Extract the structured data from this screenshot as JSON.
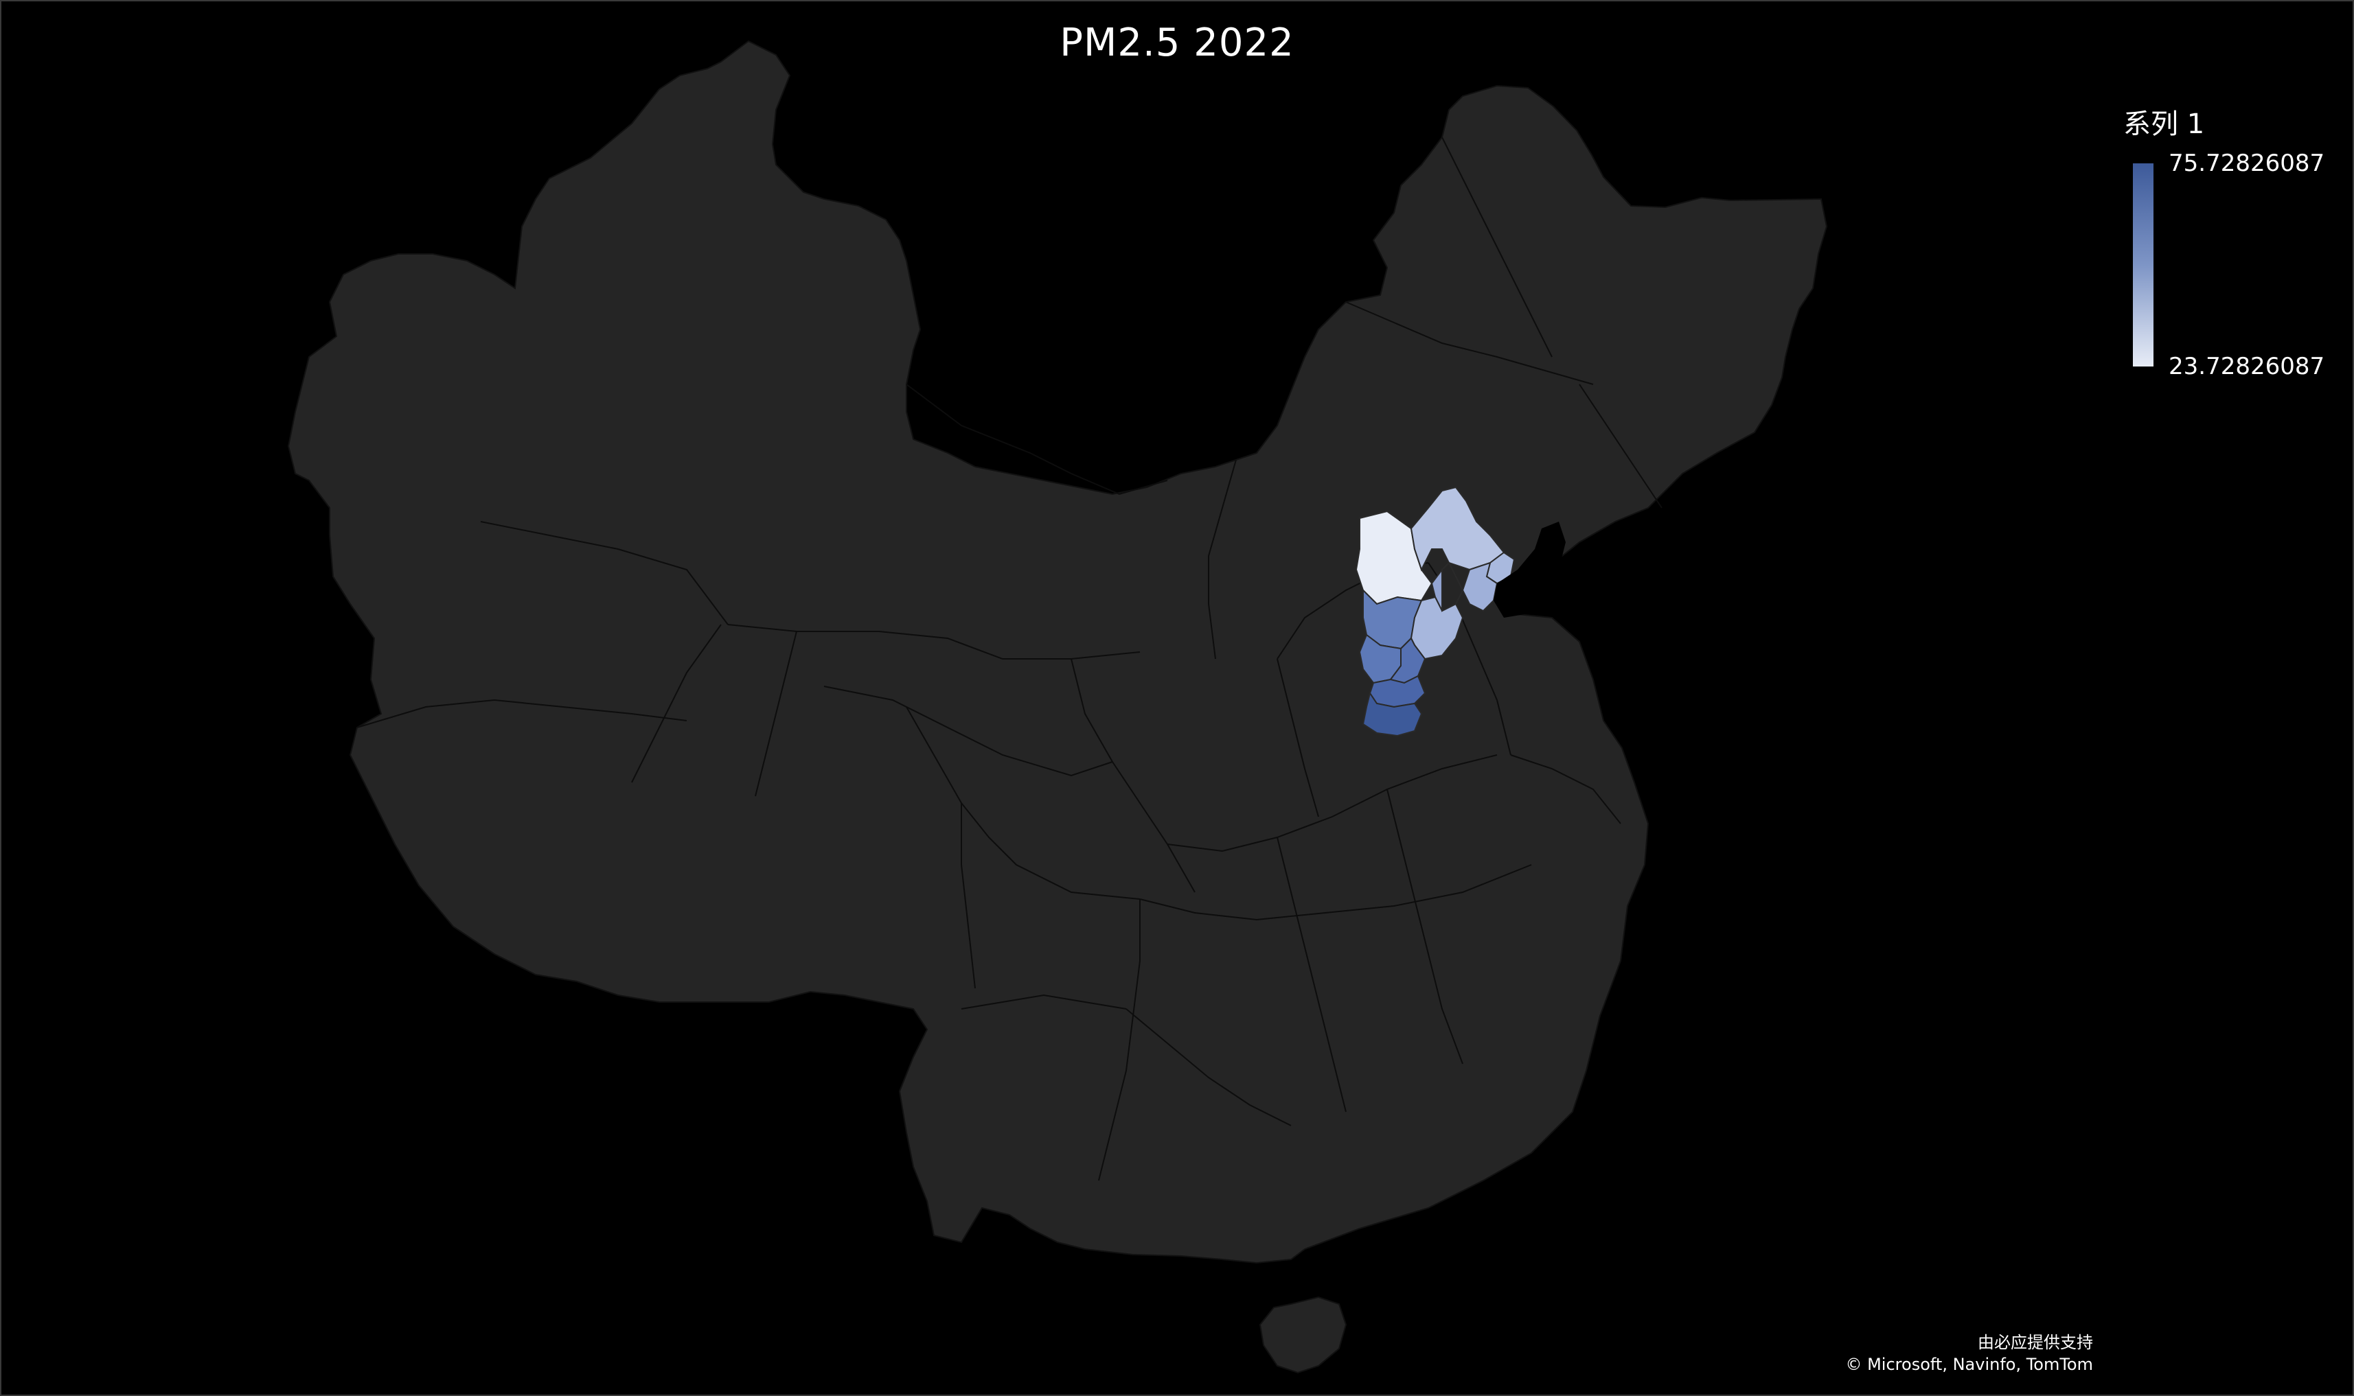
{
  "title": "PM2.5 2022",
  "legend": {
    "series_name": "系列 1",
    "max_label": "75.72826087",
    "min_label": "23.72826087",
    "color_high": "#3d5a9a",
    "color_low": "#e8edf7"
  },
  "map": {
    "background_color": "#000000",
    "land_color": "#252525",
    "border_color": "#111111",
    "highlighted_region": "Hebei / Beijing / Tianjin prefectures",
    "regions": [
      {
        "id": "zhangjiakou",
        "value": 23.73,
        "color": "#e8edf7"
      },
      {
        "id": "chengde",
        "value": 32,
        "color": "#b7c4e3"
      },
      {
        "id": "qinhuangdao",
        "value": 38,
        "color": "#a9b9de"
      },
      {
        "id": "tangshan",
        "value": 45,
        "color": "#9fb0d9"
      },
      {
        "id": "langfang",
        "value": 50,
        "color": "#92a4d2"
      },
      {
        "id": "baoding",
        "value": 62,
        "color": "#647fbb"
      },
      {
        "id": "cangzhou",
        "value": 55,
        "color": "#a7b7dd"
      },
      {
        "id": "shijiazhuang",
        "value": 68,
        "color": "#5d79b8"
      },
      {
        "id": "hengshui",
        "value": 66,
        "color": "#5671b2"
      },
      {
        "id": "xingtai",
        "value": 72,
        "color": "#4a66a9"
      },
      {
        "id": "handan",
        "value": 75.73,
        "color": "#3d5a9a"
      }
    ]
  },
  "attribution": {
    "line1": "由必应提供支持",
    "line2": "© Microsoft, Navinfo, TomTom"
  }
}
